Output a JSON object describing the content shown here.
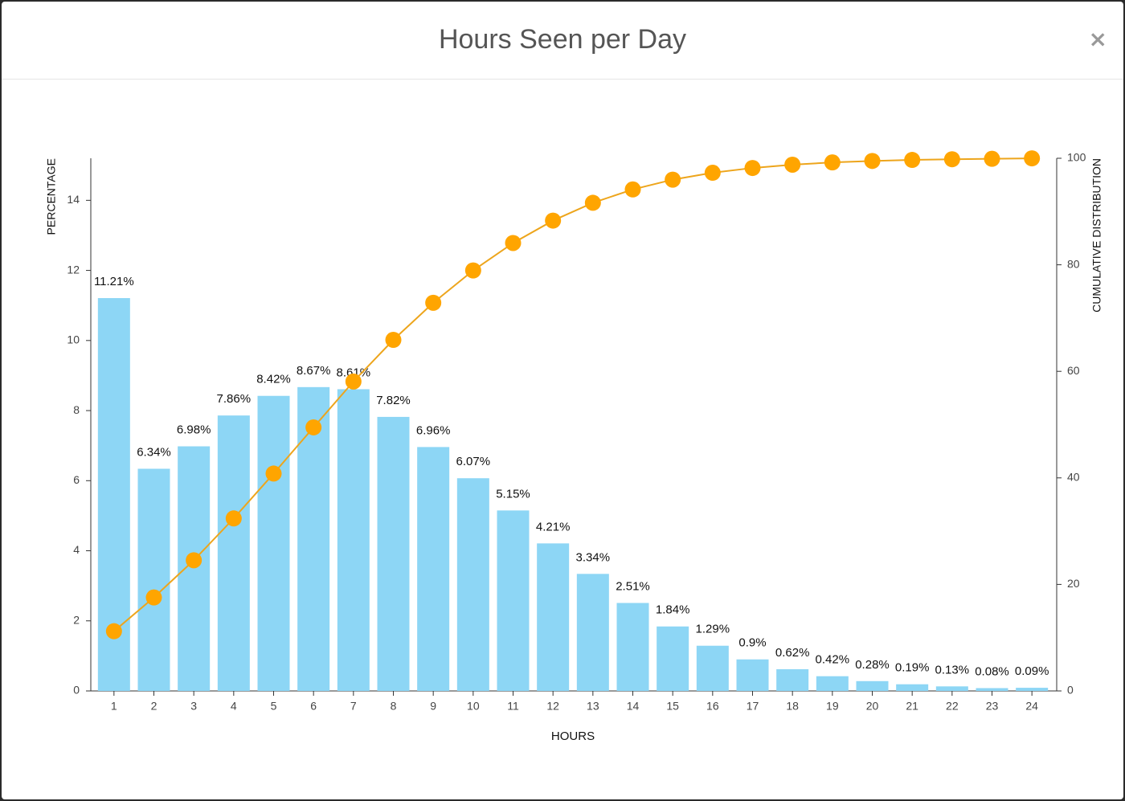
{
  "header": {
    "title": "Hours Seen per Day",
    "close": "×"
  },
  "chart_data": {
    "type": "bar",
    "x_label": "HOURS",
    "y_label": "PERCENTAGE",
    "y2_label": "CUMULATIVE DISTRIBUTION",
    "categories": [
      "1",
      "2",
      "3",
      "4",
      "5",
      "6",
      "7",
      "8",
      "9",
      "10",
      "11",
      "12",
      "13",
      "14",
      "15",
      "16",
      "17",
      "18",
      "19",
      "20",
      "21",
      "22",
      "23",
      "24"
    ],
    "series": [
      {
        "type": "bar",
        "color": "#8dd6f5",
        "values": [
          11.21,
          6.34,
          6.98,
          7.86,
          8.42,
          8.67,
          8.61,
          7.82,
          6.96,
          6.07,
          5.15,
          4.21,
          3.34,
          2.51,
          1.84,
          1.29,
          0.9,
          0.62,
          0.42,
          0.28,
          0.19,
          0.13,
          0.08,
          0.09
        ],
        "value_labels": [
          "11.21%",
          "6.34%",
          "6.98%",
          "7.86%",
          "8.42%",
          "8.67%",
          "8.61%",
          "7.82%",
          "6.96%",
          "6.07%",
          "5.15%",
          "4.21%",
          "3.34%",
          "2.51%",
          "1.84%",
          "1.29%",
          "0.9%",
          "0.62%",
          "0.42%",
          "0.28%",
          "0.19%",
          "0.13%",
          "0.08%",
          "0.09%"
        ]
      },
      {
        "type": "line",
        "axis": "y2",
        "color": "#ffa500",
        "line_color": "#eda51c",
        "values": [
          11.21,
          17.55,
          24.53,
          32.39,
          40.81,
          49.48,
          58.09,
          65.91,
          72.87,
          78.94,
          84.09,
          88.3,
          91.64,
          94.15,
          95.99,
          97.28,
          98.18,
          98.8,
          99.22,
          99.5,
          99.69,
          99.82,
          99.9,
          99.99
        ]
      }
    ],
    "ylim": [
      0,
      15.2
    ],
    "yticks": [
      0,
      2,
      4,
      6,
      8,
      10,
      12,
      14
    ],
    "y2lim": [
      0,
      100
    ],
    "y2ticks": [
      0,
      20,
      40,
      60,
      80,
      100
    ],
    "grid": false
  }
}
